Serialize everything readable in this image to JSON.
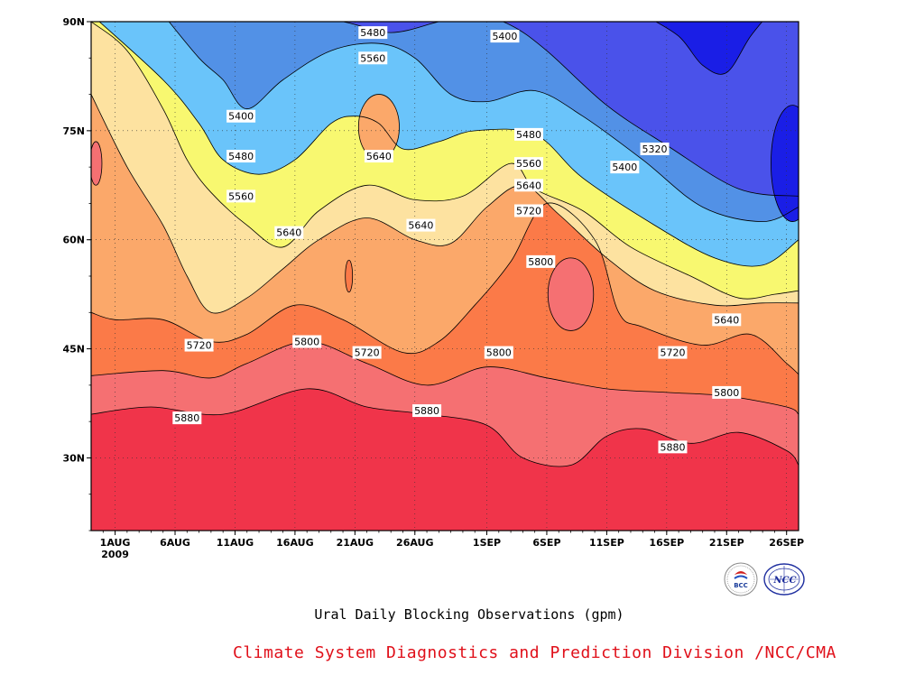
{
  "title": "Ural Daily Blocking Observations (gpm)",
  "credit": "Climate System Diagnostics and Prediction Division /NCC/CMA",
  "logos": [
    {
      "icon": "bcc-logo",
      "text": "BCC"
    },
    {
      "icon": "ncc-logo",
      "text": "NCC"
    }
  ],
  "chart_data": {
    "type": "contour",
    "title": "Ural Daily Blocking Observations (gpm)",
    "units": "gpm",
    "x_tick_labels": [
      "1AUG\n2009",
      "6AUG",
      "11AUG",
      "16AUG",
      "21AUG",
      "26AUG",
      "1SEP",
      "6SEP",
      "11SEP",
      "16SEP",
      "21SEP",
      "26SEP"
    ],
    "x_ticks_day": [
      0,
      5,
      10,
      15,
      20,
      25,
      31,
      36,
      41,
      46,
      51,
      56
    ],
    "xlim_day": [
      -2,
      57
    ],
    "y_tick_labels": [
      "30N",
      "45N",
      "60N",
      "75N",
      "90N"
    ],
    "y_ticks": [
      30,
      45,
      60,
      75,
      90
    ],
    "ylim": [
      20,
      90
    ],
    "grid": true,
    "levels": [
      5320,
      5400,
      5480,
      5560,
      5640,
      5720,
      5800,
      5880
    ],
    "colors": {
      "below_5320": "#1a1ee6",
      "5320_5400": "#4a52ea",
      "5400_5480": "#5291e6",
      "5480_5560": "#6ac4fa",
      "5560_5640": "#f8f870",
      "5640_5720": "#fde2a0",
      "5720_5800": "#fba86a",
      "5800_5880": "#fb7a48",
      "5880_5960": "#f57072",
      "above_5960": "#f0344a"
    },
    "contour_lines": {
      "5960": [
        [
          -2,
          36
        ],
        [
          3,
          37
        ],
        [
          9,
          36
        ],
        [
          16,
          39.5
        ],
        [
          21,
          37
        ],
        [
          26,
          36
        ],
        [
          31,
          34.5
        ],
        [
          34,
          30
        ],
        [
          38,
          29
        ],
        [
          41,
          33
        ],
        [
          44,
          34
        ],
        [
          48,
          32
        ],
        [
          52,
          33.5
        ],
        [
          56,
          31
        ],
        [
          57,
          29
        ]
      ],
      "5880": [
        [
          -2,
          41.3
        ],
        [
          4,
          42
        ],
        [
          8,
          41
        ],
        [
          11,
          43
        ],
        [
          16,
          46
        ],
        [
          21,
          43
        ],
        [
          26,
          40
        ],
        [
          31,
          42.5
        ],
        [
          36,
          41
        ],
        [
          41,
          39.5
        ],
        [
          46,
          39
        ],
        [
          51,
          38.5
        ],
        [
          56,
          37
        ],
        [
          57,
          36
        ]
      ],
      "5800": [
        [
          -2,
          50
        ],
        [
          0,
          49
        ],
        [
          4,
          49
        ],
        [
          8,
          46
        ],
        [
          11,
          47
        ],
        [
          15,
          51
        ],
        [
          19,
          49
        ],
        [
          24,
          44.5
        ],
        [
          27,
          46
        ],
        [
          30,
          51
        ],
        [
          33,
          57
        ],
        [
          36,
          65
        ],
        [
          40,
          60
        ],
        [
          42,
          50
        ],
        [
          44,
          48
        ],
        [
          49,
          45.5
        ],
        [
          53,
          47
        ],
        [
          56,
          43
        ],
        [
          57,
          41.5
        ]
      ],
      "5720": [
        [
          -2,
          80
        ],
        [
          1,
          70
        ],
        [
          4,
          62
        ],
        [
          6,
          55
        ],
        [
          8,
          50
        ],
        [
          11,
          52
        ],
        [
          14,
          56
        ],
        [
          17,
          60
        ],
        [
          21,
          63
        ],
        [
          25,
          60
        ],
        [
          28,
          59.5
        ],
        [
          31,
          64.5
        ],
        [
          34,
          67.5
        ],
        [
          37,
          63.5
        ],
        [
          41,
          57.5
        ],
        [
          45,
          53
        ],
        [
          50,
          51
        ],
        [
          54,
          51.3
        ],
        [
          57,
          51.3
        ]
      ],
      "5640": [
        [
          -2,
          90
        ],
        [
          1,
          86
        ],
        [
          4,
          78
        ],
        [
          6,
          71
        ],
        [
          8,
          66.5
        ],
        [
          11,
          62
        ],
        [
          14,
          59
        ],
        [
          17,
          64
        ],
        [
          21,
          67.5
        ],
        [
          25,
          65.5
        ],
        [
          29,
          66
        ],
        [
          33,
          70.5
        ],
        [
          35,
          67
        ],
        [
          39,
          64
        ],
        [
          43,
          59
        ],
        [
          48,
          55
        ],
        [
          52,
          52
        ],
        [
          55,
          52.5
        ],
        [
          57,
          53
        ]
      ],
      "5560": [
        [
          -2,
          91
        ],
        [
          4,
          82
        ],
        [
          7,
          76
        ],
        [
          9,
          71
        ],
        [
          12,
          69
        ],
        [
          15,
          71
        ],
        [
          18,
          76
        ],
        [
          20,
          77
        ],
        [
          22,
          76
        ],
        [
          24,
          72.5
        ],
        [
          27,
          73.5
        ],
        [
          30,
          75
        ],
        [
          35,
          74.5
        ],
        [
          39,
          68.5
        ],
        [
          45,
          62
        ],
        [
          50,
          57.5
        ],
        [
          54,
          56.5
        ],
        [
          57,
          60
        ]
      ],
      "5480": [
        [
          4,
          91
        ],
        [
          7,
          85
        ],
        [
          9,
          82
        ],
        [
          11,
          78
        ],
        [
          14,
          82
        ],
        [
          18,
          86
        ],
        [
          22,
          87
        ],
        [
          25,
          85
        ],
        [
          28,
          80
        ],
        [
          31,
          79
        ],
        [
          35,
          80.5
        ],
        [
          39,
          77
        ],
        [
          44,
          71
        ],
        [
          49,
          64.5
        ],
        [
          54,
          62.5
        ],
        [
          57,
          64.5
        ]
      ],
      "5400": [
        [
          14,
          91
        ],
        [
          19,
          90
        ],
        [
          23,
          88.5
        ],
        [
          27,
          90
        ],
        [
          30,
          91
        ],
        [
          33,
          89.5
        ],
        [
          36,
          86
        ],
        [
          41,
          78.5
        ],
        [
          46,
          73
        ],
        [
          52,
          67
        ],
        [
          57,
          66
        ]
      ],
      "5320": [
        [
          44,
          91
        ],
        [
          47,
          88
        ],
        [
          49,
          84
        ],
        [
          51,
          83
        ],
        [
          53,
          88
        ],
        [
          55,
          92
        ]
      ]
    },
    "contour_labels": [
      {
        "text": "5480",
        "x": 21.5,
        "y": 88.5
      },
      {
        "text": "5400",
        "x": 32.5,
        "y": 88
      },
      {
        "text": "5560",
        "x": 21.5,
        "y": 85
      },
      {
        "text": "5400",
        "x": 10.5,
        "y": 77
      },
      {
        "text": "5480",
        "x": 10.5,
        "y": 71.5
      },
      {
        "text": "5640",
        "x": 22,
        "y": 71.5
      },
      {
        "text": "5560",
        "x": 10.5,
        "y": 66
      },
      {
        "text": "5480",
        "x": 34.5,
        "y": 74.5
      },
      {
        "text": "5560",
        "x": 34.5,
        "y": 70.5
      },
      {
        "text": "5320",
        "x": 45,
        "y": 72.5
      },
      {
        "text": "5400",
        "x": 42.5,
        "y": 70
      },
      {
        "text": "5640",
        "x": 34.5,
        "y": 67.5
      },
      {
        "text": "5720",
        "x": 34.5,
        "y": 64
      },
      {
        "text": "5640",
        "x": 14.5,
        "y": 61
      },
      {
        "text": "5640",
        "x": 25.5,
        "y": 62
      },
      {
        "text": "5800",
        "x": 35.5,
        "y": 57
      },
      {
        "text": "5640",
        "x": 51,
        "y": 49
      },
      {
        "text": "5720",
        "x": 7,
        "y": 45.5
      },
      {
        "text": "5800",
        "x": 16,
        "y": 46
      },
      {
        "text": "5720",
        "x": 21,
        "y": 44.5
      },
      {
        "text": "5800",
        "x": 32,
        "y": 44.5
      },
      {
        "text": "5720",
        "x": 46.5,
        "y": 44.5
      },
      {
        "text": "5800",
        "x": 51,
        "y": 39
      },
      {
        "text": "5880",
        "x": 6,
        "y": 35.5
      },
      {
        "text": "5880",
        "x": 26,
        "y": 36.5
      },
      {
        "text": "5880",
        "x": 46.5,
        "y": 31.5
      }
    ],
    "closed_features": [
      {
        "level": 5640,
        "center": [
          22,
          75.5
        ],
        "radius": [
          1.7,
          4.5
        ]
      },
      {
        "level": 5800,
        "center": [
          38,
          52.5
        ],
        "radius": [
          1.9,
          5
        ]
      },
      {
        "level": 5800,
        "center": [
          -1.6,
          70.5
        ],
        "radius": [
          0.5,
          3
        ]
      },
      {
        "level": 5720,
        "center": [
          19.5,
          55
        ],
        "radius": [
          0.3,
          2.2
        ]
      },
      {
        "level": 5320,
        "center": [
          56.5,
          70.5
        ],
        "radius": [
          1.8,
          8
        ]
      }
    ]
  }
}
